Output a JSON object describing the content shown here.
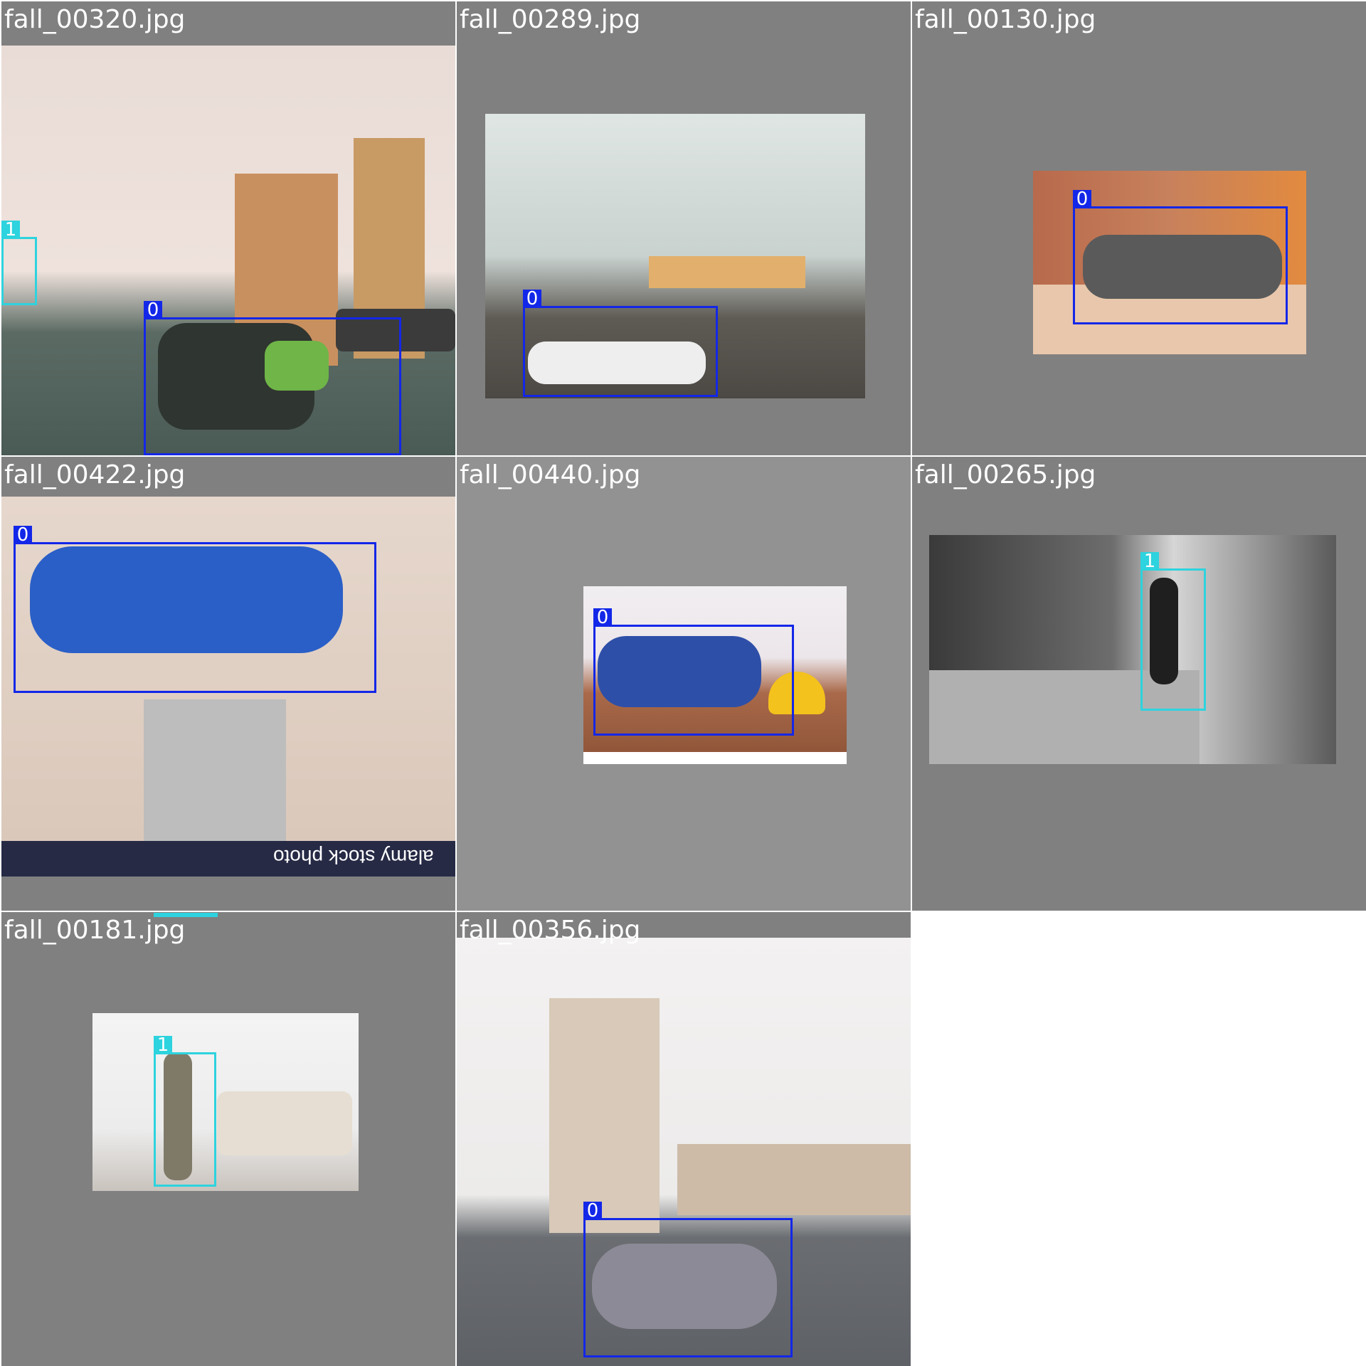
{
  "tiles": [
    {
      "filename": "fall_00320.jpg",
      "boxes": [
        {
          "label": "1"
        },
        {
          "label": "0"
        }
      ]
    },
    {
      "filename": "fall_00289.jpg",
      "boxes": [
        {
          "label": "0"
        }
      ]
    },
    {
      "filename": "fall_00130.jpg",
      "boxes": [
        {
          "label": "0"
        }
      ]
    },
    {
      "filename": "fall_00422.jpg",
      "boxes": [
        {
          "label": "0"
        }
      ],
      "watermark": "alamy stock photo"
    },
    {
      "filename": "fall_00440.jpg",
      "boxes": [
        {
          "label": "0"
        }
      ]
    },
    {
      "filename": "fall_00265.jpg",
      "boxes": [
        {
          "label": "1"
        }
      ]
    },
    {
      "filename": "fall_00181.jpg",
      "boxes": [
        {
          "label": "1"
        }
      ]
    },
    {
      "filename": "fall_00356.jpg",
      "boxes": [
        {
          "label": "0"
        }
      ]
    }
  ],
  "colors": {
    "class0": "#1327e8",
    "class1": "#2dd3de",
    "tile_bg": "#808080"
  }
}
